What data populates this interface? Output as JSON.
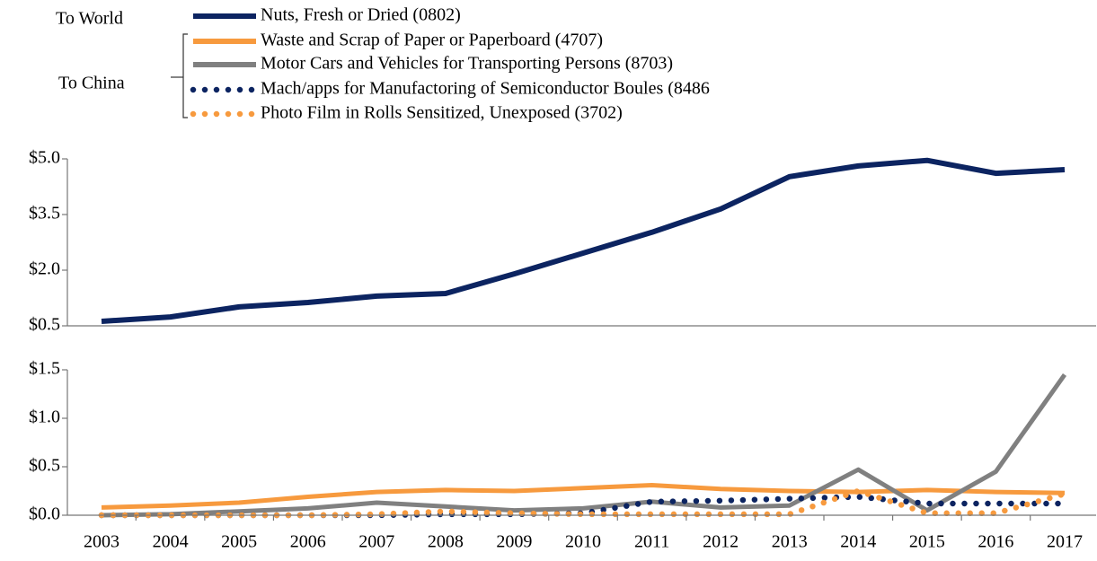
{
  "chart_data": [
    {
      "type": "line",
      "legend_group": "To World",
      "ylim": [
        0.5,
        5.0
      ],
      "yticks": [
        {
          "value": 0.5,
          "label": "$0.5"
        },
        {
          "value": 2.0,
          "label": "$2.0"
        },
        {
          "value": 3.5,
          "label": "$3.5"
        },
        {
          "value": 5.0,
          "label": "$5.0"
        }
      ],
      "series": [
        {
          "name": "Nuts, Fresh or Dried (0802)",
          "color": "#0c2461",
          "style": "solid",
          "values": [
            0.62,
            0.74,
            1.01,
            1.13,
            1.3,
            1.37,
            1.9,
            2.46,
            3.02,
            3.65,
            4.52,
            4.81,
            4.96,
            4.61,
            4.71
          ]
        }
      ]
    },
    {
      "type": "line",
      "legend_group": "To China",
      "categories": [
        "2003",
        "2004",
        "2005",
        "2006",
        "2007",
        "2008",
        "2009",
        "2010",
        "2011",
        "2012",
        "2013",
        "2014",
        "2015",
        "2016",
        "2017"
      ],
      "ylim": [
        0,
        1.5
      ],
      "yticks": [
        {
          "value": 0,
          "label": "$0.0"
        },
        {
          "value": 0.5,
          "label": "$0.5"
        },
        {
          "value": 1.0,
          "label": "$1.0"
        },
        {
          "value": 1.5,
          "label": "$1.5"
        }
      ],
      "series": [
        {
          "name": "Waste and Scrap of Paper or Paperboard (4707)",
          "color": "#f79a3e",
          "style": "solid",
          "values": [
            0.08,
            0.1,
            0.13,
            0.19,
            0.24,
            0.26,
            0.25,
            0.28,
            0.31,
            0.27,
            0.25,
            0.24,
            0.26,
            0.24,
            0.23
          ]
        },
        {
          "name": "Motor Cars and Vehicles for Transporting Persons (8703)",
          "color": "#808080",
          "style": "solid",
          "values": [
            0.0,
            0.01,
            0.04,
            0.07,
            0.13,
            0.09,
            0.05,
            0.07,
            0.14,
            0.08,
            0.1,
            0.47,
            0.05,
            0.45,
            1.45
          ]
        },
        {
          "name": "Mach/apps for Manufactoring of Semiconductor Boules (8486",
          "color": "#0c2461",
          "style": "dotted",
          "values": [
            0.0,
            0.0,
            0.0,
            0.0,
            0.0,
            0.01,
            0.01,
            0.02,
            0.14,
            0.15,
            0.17,
            0.19,
            0.12,
            0.12,
            0.12
          ]
        },
        {
          "name": "Photo Film in Rolls Sensitized, Unexposed (3702)",
          "color": "#f79a3e",
          "style": "dotted",
          "values": [
            0.0,
            0.0,
            0.0,
            0.0,
            0.01,
            0.04,
            0.02,
            0.01,
            0.01,
            0.01,
            0.01,
            0.25,
            0.02,
            0.02,
            0.22
          ]
        }
      ]
    }
  ]
}
